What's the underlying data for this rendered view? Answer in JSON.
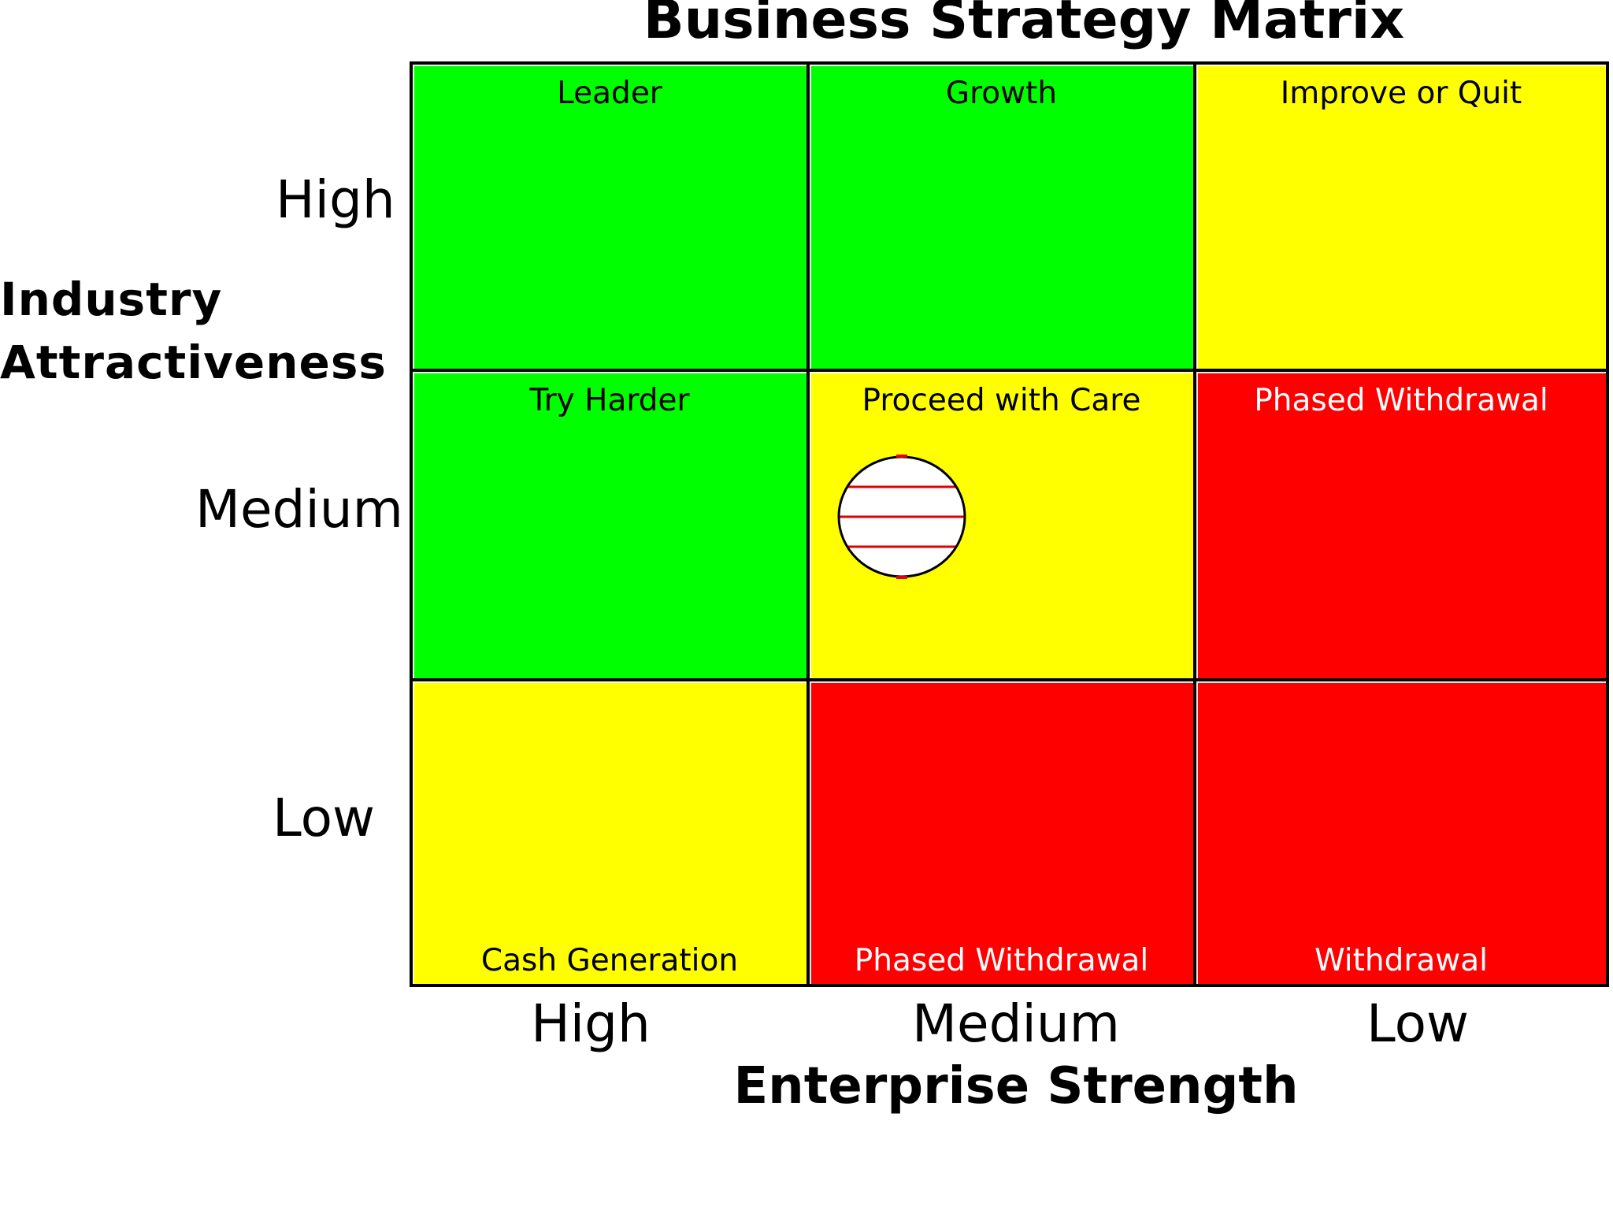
{
  "title": "Business Strategy Matrix",
  "y_axis": {
    "title_lines": [
      "Industry",
      "Attractiveness"
    ],
    "levels": [
      "High",
      "Medium",
      "Low"
    ]
  },
  "x_axis": {
    "title": "Enterprise Strength",
    "levels": [
      "High",
      "Medium",
      "Low"
    ]
  },
  "colors": {
    "green": "#00ff00",
    "yellow": "#ffff00",
    "red": "#ff0000",
    "marker_stripe": "#e00000"
  },
  "cells": [
    {
      "label": "Leader",
      "color": "#00ff00",
      "text_color": "#000000",
      "label_position": "top"
    },
    {
      "label": "Growth",
      "color": "#00ff00",
      "text_color": "#000000",
      "label_position": "top"
    },
    {
      "label": "Improve or Quit",
      "color": "#ffff00",
      "text_color": "#000000",
      "label_position": "top"
    },
    {
      "label": "Try Harder",
      "color": "#00ff00",
      "text_color": "#000000",
      "label_position": "top"
    },
    {
      "label": "Proceed with Care",
      "color": "#ffff00",
      "text_color": "#000000",
      "label_position": "top"
    },
    {
      "label": "Phased Withdrawal",
      "color": "#ff0000",
      "text_color": "#ffffff",
      "label_position": "top"
    },
    {
      "label": "Cash Generation",
      "color": "#ffff00",
      "text_color": "#000000",
      "label_position": "bottom"
    },
    {
      "label": "Phased Withdrawal",
      "color": "#ff0000",
      "text_color": "#ffffff",
      "label_position": "bottom"
    },
    {
      "label": "Withdrawal",
      "color": "#ff0000",
      "text_color": "#ffffff",
      "label_position": "bottom"
    }
  ],
  "marker": {
    "cell": "Proceed with Care",
    "enterprise_strength": "Medium",
    "industry_attractiveness": "Medium"
  }
}
